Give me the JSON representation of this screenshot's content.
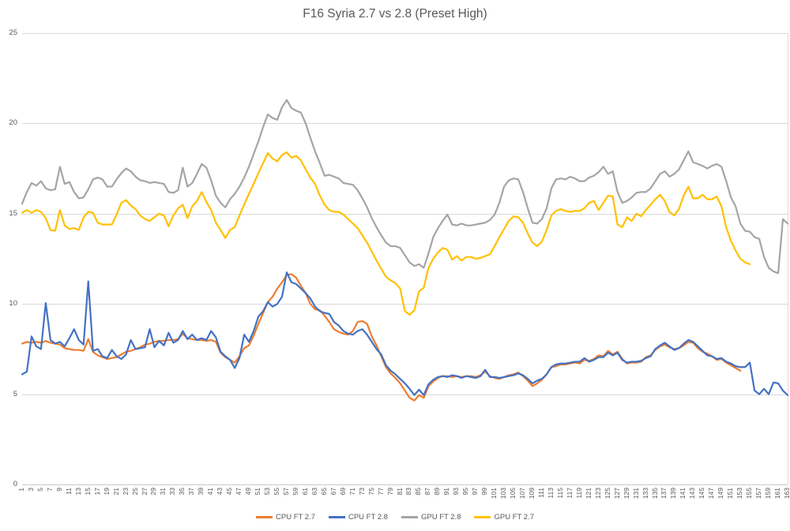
{
  "title": "F16 Syria 2.7 vs 2.8 (Preset High)",
  "colors": {
    "cpu_ft_27": "#ED7D31",
    "cpu_ft_28": "#4472C4",
    "gpu_ft_28": "#A5A5A5",
    "gpu_ft_27": "#FFC000",
    "gridline": "#D9D9D9",
    "axis_text": "#595959",
    "title_text": "#595959"
  },
  "axes": {
    "y_tick_labels": [
      "0",
      "5",
      "10",
      "15",
      "20",
      "25"
    ],
    "x_tick_labels": [
      "1",
      "3",
      "5",
      "7",
      "9",
      "11",
      "13",
      "15",
      "17",
      "19",
      "21",
      "23",
      "25",
      "27",
      "29",
      "31",
      "33",
      "35",
      "37",
      "39",
      "41",
      "43",
      "45",
      "47",
      "49",
      "51",
      "53",
      "55",
      "57",
      "59",
      "61",
      "63",
      "65",
      "67",
      "69",
      "71",
      "73",
      "75",
      "77",
      "79",
      "81",
      "83",
      "85",
      "87",
      "89",
      "91",
      "93",
      "95",
      "97",
      "99",
      "101",
      "103",
      "105",
      "107",
      "109",
      "111",
      "113",
      "115",
      "117",
      "119",
      "121",
      "123",
      "125",
      "127",
      "129",
      "131",
      "133",
      "135",
      "137",
      "139",
      "141",
      "143",
      "145",
      "147",
      "149",
      "151",
      "153",
      "155",
      "157",
      "159",
      "161",
      "163"
    ]
  },
  "legend": [
    {
      "label": "CPU FT 2.7",
      "color": "#ED7D31"
    },
    {
      "label": "CPU FT 2.8",
      "color": "#4472C4"
    },
    {
      "label": "GPU FT 2.8",
      "color": "#A5A5A5"
    },
    {
      "label": "GPU FT 2.7",
      "color": "#FFC000"
    }
  ],
  "chart_data": {
    "type": "line",
    "title": "F16 Syria 2.7 vs 2.8 (Preset High)",
    "xlabel": "",
    "ylabel": "",
    "x_start": 1,
    "x_step": 1,
    "x_max": 163,
    "ylim": [
      0,
      25
    ],
    "y_tick_step": 5,
    "grid": true,
    "legend_position": "bottom",
    "series": [
      {
        "name": "CPU FT 2.7",
        "color": "#ED7D31",
        "values": [
          7.8,
          7.9,
          7.85,
          7.9,
          7.85,
          7.95,
          7.85,
          7.8,
          7.75,
          7.55,
          7.5,
          7.45,
          7.45,
          7.4,
          8.05,
          7.35,
          7.15,
          7.05,
          6.95,
          7.0,
          7.05,
          7.2,
          7.35,
          7.4,
          7.5,
          7.6,
          7.75,
          7.8,
          7.9,
          7.95,
          7.95,
          8.0,
          8.0,
          8.05,
          8.35,
          8.1,
          8.05,
          8.0,
          8.0,
          7.95,
          8.0,
          7.9,
          7.3,
          7.05,
          6.9,
          6.75,
          7.1,
          7.55,
          7.7,
          8.25,
          8.9,
          9.5,
          10.1,
          10.4,
          10.85,
          11.2,
          11.6,
          11.65,
          11.45,
          11.0,
          10.6,
          10.0,
          9.7,
          9.65,
          9.35,
          9.0,
          8.6,
          8.45,
          8.35,
          8.3,
          8.5,
          9.0,
          9.05,
          8.9,
          8.2,
          7.7,
          7.1,
          6.5,
          6.15,
          5.9,
          5.6,
          5.2,
          4.8,
          4.65,
          4.95,
          4.8,
          5.45,
          5.7,
          5.9,
          6.0,
          6.0,
          5.95,
          6.0,
          5.95,
          6.0,
          6.0,
          5.95,
          6.05,
          6.25,
          6.0,
          5.9,
          5.85,
          5.95,
          6.05,
          6.1,
          6.2,
          6.0,
          5.75,
          5.45,
          5.6,
          5.8,
          6.1,
          6.5,
          6.55,
          6.65,
          6.65,
          6.7,
          6.75,
          6.7,
          6.9,
          6.85,
          6.95,
          7.15,
          7.1,
          7.4,
          7.2,
          7.35,
          6.95,
          6.7,
          6.75,
          6.75,
          6.8,
          7.05,
          7.15,
          7.45,
          7.65,
          7.75,
          7.6,
          7.5,
          7.55,
          7.7,
          7.9,
          7.85,
          7.55,
          7.35,
          7.25,
          7.1,
          6.9,
          6.95,
          6.75,
          6.6,
          6.45,
          6.3
        ]
      },
      {
        "name": "CPU FT 2.8",
        "color": "#4472C4",
        "values": [
          6.1,
          6.25,
          8.2,
          7.65,
          7.5,
          10.05,
          8.0,
          7.8,
          7.9,
          7.65,
          8.1,
          8.6,
          8.0,
          7.75,
          11.25,
          7.4,
          7.5,
          7.1,
          7.0,
          7.45,
          7.1,
          6.95,
          7.2,
          8.0,
          7.5,
          7.55,
          7.6,
          8.6,
          7.6,
          7.95,
          7.7,
          8.4,
          7.85,
          8.0,
          8.5,
          8.05,
          8.3,
          8.0,
          8.1,
          8.0,
          8.5,
          8.15,
          7.35,
          7.1,
          6.9,
          6.45,
          7.0,
          8.3,
          7.9,
          8.5,
          9.3,
          9.6,
          10.1,
          9.85,
          10.0,
          10.4,
          11.75,
          11.2,
          11.1,
          10.85,
          10.6,
          10.3,
          9.85,
          9.6,
          9.5,
          9.45,
          9.0,
          8.8,
          8.5,
          8.35,
          8.3,
          8.5,
          8.6,
          8.3,
          7.9,
          7.5,
          7.2,
          6.6,
          6.3,
          6.1,
          5.85,
          5.6,
          5.3,
          4.95,
          5.25,
          4.95,
          5.55,
          5.8,
          5.95,
          6.0,
          5.95,
          6.05,
          6.0,
          5.9,
          6.0,
          5.95,
          5.9,
          6.0,
          6.35,
          5.95,
          5.95,
          5.9,
          5.95,
          6.0,
          6.05,
          6.15,
          6.05,
          5.85,
          5.6,
          5.75,
          5.85,
          6.1,
          6.5,
          6.65,
          6.7,
          6.7,
          6.75,
          6.8,
          6.8,
          7.0,
          6.8,
          6.9,
          7.05,
          7.05,
          7.3,
          7.15,
          7.3,
          6.9,
          6.75,
          6.8,
          6.8,
          6.85,
          7.0,
          7.1,
          7.5,
          7.7,
          7.85,
          7.65,
          7.45,
          7.55,
          7.8,
          8.0,
          7.9,
          7.65,
          7.4,
          7.15,
          7.1,
          6.95,
          7.0,
          6.8,
          6.7,
          6.55,
          6.5,
          6.5,
          6.75,
          5.2,
          5.0,
          5.3,
          5.0,
          5.65,
          5.6,
          5.2,
          4.95
        ]
      },
      {
        "name": "GPU FT 2.8",
        "color": "#A5A5A5",
        "values": [
          15.55,
          16.2,
          16.7,
          16.55,
          16.8,
          16.4,
          16.3,
          16.35,
          17.6,
          16.65,
          16.75,
          16.2,
          15.85,
          15.9,
          16.35,
          16.9,
          17.0,
          16.9,
          16.5,
          16.5,
          16.9,
          17.25,
          17.5,
          17.35,
          17.05,
          16.85,
          16.8,
          16.7,
          16.75,
          16.7,
          16.65,
          16.2,
          16.15,
          16.3,
          17.55,
          16.5,
          16.7,
          17.2,
          17.75,
          17.55,
          16.85,
          16.0,
          15.6,
          15.35,
          15.8,
          16.1,
          16.5,
          17.0,
          17.6,
          18.3,
          19.0,
          19.8,
          20.5,
          20.3,
          20.2,
          20.9,
          21.3,
          20.85,
          20.7,
          20.6,
          20.0,
          19.2,
          18.45,
          17.8,
          17.1,
          17.15,
          17.05,
          16.95,
          16.7,
          16.65,
          16.6,
          16.3,
          15.85,
          15.35,
          14.75,
          14.25,
          13.8,
          13.4,
          13.2,
          13.2,
          13.1,
          12.7,
          12.3,
          12.1,
          12.2,
          12.0,
          12.8,
          13.7,
          14.2,
          14.6,
          14.95,
          14.4,
          14.35,
          14.45,
          14.35,
          14.35,
          14.4,
          14.45,
          14.5,
          14.65,
          14.95,
          15.6,
          16.5,
          16.85,
          16.95,
          16.9,
          16.2,
          15.3,
          14.5,
          14.45,
          14.7,
          15.3,
          16.4,
          16.9,
          16.95,
          16.9,
          17.05,
          16.95,
          16.8,
          16.8,
          17.0,
          17.1,
          17.3,
          17.6,
          17.2,
          17.35,
          16.2,
          15.6,
          15.7,
          15.9,
          16.15,
          16.2,
          16.2,
          16.4,
          16.8,
          17.2,
          17.35,
          17.05,
          17.2,
          17.45,
          17.95,
          18.45,
          17.85,
          17.75,
          17.65,
          17.5,
          17.65,
          17.75,
          17.6,
          16.8,
          15.9,
          15.4,
          14.45,
          14.05,
          14.0,
          13.7,
          13.6,
          12.6,
          12.0,
          11.8,
          11.7,
          14.7,
          14.45
        ]
      },
      {
        "name": "GPU FT 2.7",
        "color": "#FFC000",
        "values": [
          15.05,
          15.2,
          15.05,
          15.2,
          15.1,
          14.75,
          14.1,
          14.05,
          15.2,
          14.35,
          14.15,
          14.2,
          14.1,
          14.8,
          15.1,
          15.05,
          14.5,
          14.4,
          14.4,
          14.4,
          14.95,
          15.6,
          15.75,
          15.45,
          15.25,
          14.9,
          14.7,
          14.6,
          14.8,
          15.0,
          14.9,
          14.3,
          14.9,
          15.3,
          15.5,
          14.75,
          15.4,
          15.7,
          16.2,
          15.65,
          15.2,
          14.5,
          14.1,
          13.65,
          14.1,
          14.25,
          14.9,
          15.5,
          16.1,
          16.65,
          17.25,
          17.8,
          18.35,
          18.05,
          17.9,
          18.25,
          18.4,
          18.1,
          18.2,
          17.95,
          17.45,
          17.0,
          16.65,
          16.0,
          15.5,
          15.2,
          15.1,
          15.1,
          14.95,
          14.7,
          14.45,
          14.2,
          13.8,
          13.4,
          12.9,
          12.4,
          11.95,
          11.5,
          11.3,
          11.15,
          10.85,
          9.6,
          9.4,
          9.65,
          10.7,
          10.9,
          12.0,
          12.5,
          12.85,
          13.1,
          13.0,
          12.45,
          12.65,
          12.4,
          12.6,
          12.6,
          12.5,
          12.55,
          12.65,
          12.75,
          13.2,
          13.7,
          14.15,
          14.6,
          14.85,
          14.8,
          14.5,
          13.9,
          13.4,
          13.2,
          13.45,
          14.1,
          14.9,
          15.15,
          15.25,
          15.15,
          15.1,
          15.15,
          15.15,
          15.3,
          15.6,
          15.7,
          15.2,
          15.6,
          16.0,
          15.95,
          14.4,
          14.25,
          14.8,
          14.6,
          15.0,
          14.85,
          15.2,
          15.5,
          15.8,
          16.05,
          15.7,
          15.1,
          14.9,
          15.25,
          16.0,
          16.5,
          15.85,
          15.85,
          16.05,
          15.8,
          15.8,
          15.95,
          15.4,
          14.25,
          13.5,
          12.95,
          12.5,
          12.3,
          12.2
        ]
      }
    ]
  }
}
